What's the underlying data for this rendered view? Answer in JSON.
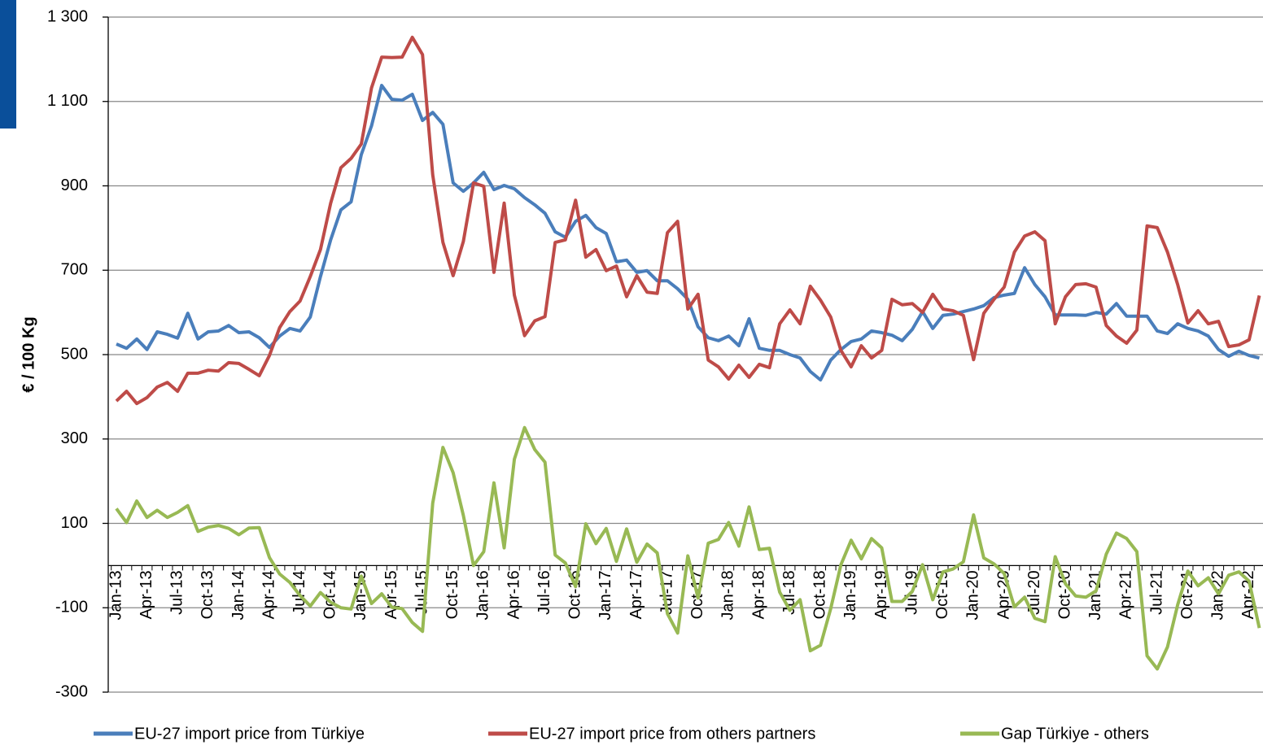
{
  "chart_data": {
    "type": "line",
    "y_label": "€ / 100 Kg",
    "categories": [
      "Jan-13",
      null,
      null,
      "Apr-13",
      null,
      null,
      "Jul-13",
      null,
      null,
      "Oct-13",
      null,
      null,
      "Jan-14",
      null,
      null,
      "Apr-14",
      null,
      null,
      "Jul-14",
      null,
      null,
      "Oct-14",
      null,
      null,
      "Jan-15",
      null,
      null,
      "Apr-15",
      null,
      null,
      "Jul-15",
      null,
      null,
      "Oct-15",
      null,
      null,
      "Jan-16",
      null,
      null,
      "Apr-16",
      null,
      null,
      "Jul-16",
      null,
      null,
      "Oct-16",
      null,
      null,
      "Jan-17",
      null,
      null,
      "Apr-17",
      null,
      null,
      "Jul-17",
      null,
      null,
      "Oct-17",
      null,
      null,
      "Jan-18",
      null,
      null,
      "Apr-18",
      null,
      null,
      "Jul-18",
      null,
      null,
      "Oct-18",
      null,
      null,
      "Jan-19",
      null,
      null,
      "Apr-19",
      null,
      null,
      "Jul-19",
      null,
      null,
      "Oct-19",
      null,
      null,
      "Jan-20",
      null,
      null,
      "Apr-20",
      null,
      null,
      "Jul-20",
      null,
      null,
      "Oct-20",
      null,
      null,
      "Jan-21",
      null,
      null,
      "Apr-21",
      null,
      null,
      "Jul-21",
      null,
      null,
      "Oct-21",
      null,
      null,
      "Jan-22",
      null,
      null,
      "Apr-22",
      null
    ],
    "series": [
      {
        "name": "EU-27 import price from Türkiye",
        "color": "#4a7ebb",
        "values": [
          525,
          515,
          537,
          512,
          554,
          548,
          539,
          598,
          537,
          554,
          556,
          569,
          552,
          554,
          540,
          517,
          544,
          562,
          556,
          589,
          685,
          772,
          843,
          862,
          974,
          1042,
          1138,
          1105,
          1103,
          1117,
          1055,
          1074,
          1046,
          907,
          887,
          907,
          932,
          891,
          901,
          893,
          872,
          855,
          835,
          791,
          778,
          816,
          830,
          801,
          787,
          720,
          724,
          695,
          699,
          675,
          675,
          656,
          631,
          566,
          540,
          533,
          544,
          521,
          585,
          515,
          510,
          510,
          500,
          492,
          460,
          440,
          487,
          512,
          531,
          537,
          556,
          552,
          546,
          533,
          560,
          602,
          562,
          593,
          596,
          602,
          608,
          616,
          635,
          641,
          645,
          706,
          666,
          637,
          594,
          594,
          594,
          593,
          600,
          596,
          621,
          591,
          591,
          591,
          556,
          550,
          573,
          562,
          556,
          544,
          512,
          496,
          508,
          498,
          492
        ]
      },
      {
        "name": "EU-27 import price from others partners",
        "color": "#be4b48",
        "values": [
          390,
          413,
          384,
          398,
          423,
          434,
          413,
          456,
          456,
          463,
          461,
          481,
          479,
          465,
          450,
          498,
          564,
          602,
          627,
          685,
          749,
          859,
          943,
          965,
          999,
          1132,
          1205,
          1204,
          1205,
          1252,
          1211,
          926,
          766,
          687,
          768,
          907,
          899,
          695,
          859,
          641,
          545,
          580,
          590,
          766,
          772,
          866,
          731,
          749,
          699,
          710,
          637,
          687,
          648,
          645,
          789,
          816,
          608,
          643,
          487,
          471,
          442,
          475,
          446,
          477,
          469,
          573,
          606,
          573,
          662,
          629,
          589,
          510,
          471,
          521,
          492,
          510,
          631,
          618,
          621,
          600,
          643,
          608,
          604,
          593,
          488,
          598,
          631,
          660,
          743,
          781,
          791,
          770,
          573,
          637,
          666,
          668,
          660,
          569,
          544,
          527,
          558,
          805,
          801,
          743,
          666,
          575,
          604,
          573,
          579,
          519,
          523,
          535,
          640
        ]
      },
      {
        "name": "Gap Türkiye - others",
        "color": "#98b954",
        "values": [
          135,
          102,
          153,
          114,
          131,
          114,
          126,
          142,
          81,
          91,
          95,
          88,
          73,
          89,
          90,
          19,
          -20,
          -40,
          -71,
          -96,
          -64,
          -87,
          -100,
          -103,
          -25,
          -90,
          -67,
          -99,
          -102,
          -135,
          -156,
          148,
          280,
          220,
          119,
          0,
          33,
          196,
          42,
          252,
          327,
          275,
          245,
          25,
          6,
          -50,
          99,
          52,
          88,
          10,
          87,
          8,
          51,
          30,
          -114,
          -160,
          23,
          -77,
          53,
          62,
          102,
          46,
          139,
          38,
          41,
          -63,
          -106,
          -81,
          -202,
          -189,
          -102,
          2,
          60,
          16,
          64,
          42,
          -85,
          -85,
          -61,
          2,
          -81,
          -15,
          -8,
          9,
          120,
          18,
          4,
          -19,
          -98,
          -75,
          -125,
          -133,
          21,
          -43,
          -72,
          -75,
          -60,
          27,
          77,
          64,
          33,
          -214,
          -245,
          -193,
          -93,
          -13,
          -48,
          -29,
          -67,
          -23,
          -15,
          -37,
          -148
        ]
      }
    ],
    "ylim": [
      -300,
      1300
    ],
    "yticks": [
      {
        "value": 1300,
        "label": "1 300"
      },
      {
        "value": 1100,
        "label": "1 100"
      },
      900,
      700,
      500,
      300,
      100,
      -100,
      -300
    ],
    "grid": true
  }
}
